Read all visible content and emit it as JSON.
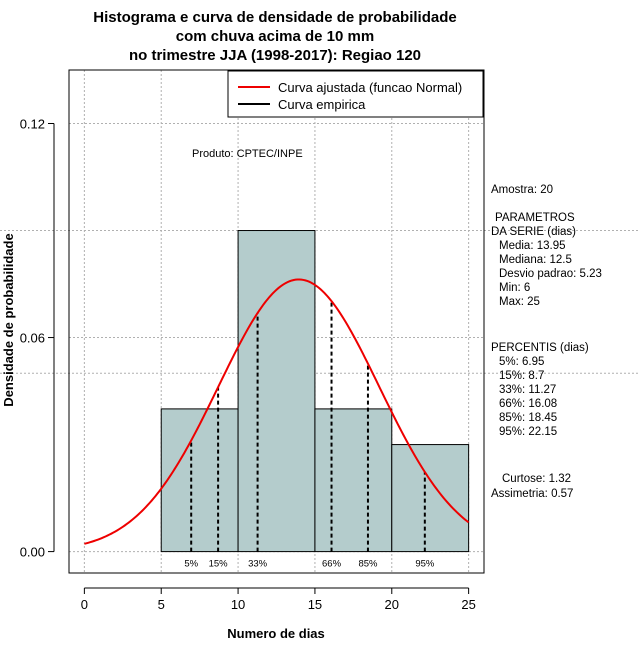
{
  "chart_data": {
    "type": "bar",
    "title_lines": [
      "Histograma e curva de densidade de probabilidade",
      "com chuva acima de 10 mm",
      "no trimestre JJA (1998-2017): Regiao 120"
    ],
    "xlabel": "Numero de dias",
    "ylabel": "Densidade de probabilidade",
    "xlim": [
      -1,
      26
    ],
    "ylim": [
      -0.006,
      0.135
    ],
    "x_ticks": [
      0,
      5,
      10,
      15,
      20,
      25
    ],
    "y_ticks": [
      0.0,
      0.06,
      0.12
    ],
    "y_tick_labels": [
      "0.00",
      "0.06",
      "0.12"
    ],
    "bins": [
      {
        "from": 5,
        "to": 10,
        "density": 0.04
      },
      {
        "from": 10,
        "to": 15,
        "density": 0.09
      },
      {
        "from": 15,
        "to": 20,
        "density": 0.04
      },
      {
        "from": 20,
        "to": 25,
        "density": 0.03
      }
    ],
    "normal_fit": {
      "mean": 13.95,
      "sd": 5.23,
      "x_range": [
        0,
        25
      ]
    },
    "percentile_lines": [
      {
        "label": "5%",
        "x": 6.95
      },
      {
        "label": "15%",
        "x": 8.7
      },
      {
        "label": "33%",
        "x": 11.27
      },
      {
        "label": "66%",
        "x": 16.08
      },
      {
        "label": "85%",
        "x": 18.45
      },
      {
        "label": "95%",
        "x": 22.15
      }
    ],
    "grid": true,
    "legend": {
      "position": "top-right",
      "entries": [
        {
          "label": "Curva ajustada (funcao Normal)",
          "color": "#ee0000"
        },
        {
          "label": "Curva empirica",
          "color": "#000000"
        }
      ]
    },
    "credit": "Produto: CPTEC/INPE"
  },
  "stats": {
    "sample": "Amostra: 20",
    "params_header_1": "PARAMETROS",
    "params_header_2": "DA SERIE (dias)",
    "params": [
      "Media: 13.95",
      "Mediana: 12.5",
      "Desvio padrao: 5.23",
      "Min: 6",
      "Max: 25"
    ],
    "percentis_header": "PERCENTIS (dias)",
    "percentis": [
      "5%: 6.95",
      "15%: 8.7",
      "33%: 11.27",
      "66%: 16.08",
      "85%: 18.45",
      "95%: 22.15"
    ],
    "curtose": "Curtose: 1.32",
    "assimetria": "Assimetria: 0.57"
  },
  "colors": {
    "bar_fill": "#b4cccc",
    "curve": "#ee0000",
    "grid": "#b0b0b0"
  }
}
